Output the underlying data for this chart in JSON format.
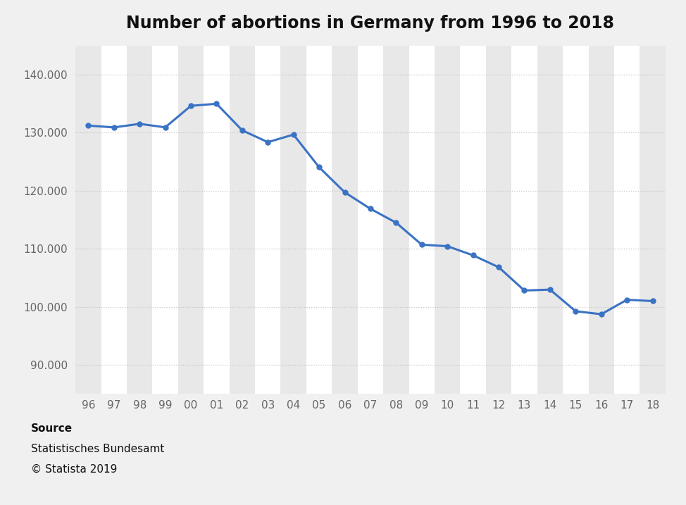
{
  "title": "Number of abortions in Germany from 1996 to 2018",
  "years": [
    "96",
    "97",
    "98",
    "99",
    "00",
    "01",
    "02",
    "03",
    "04",
    "05",
    "06",
    "07",
    "08",
    "09",
    "10",
    "11",
    "12",
    "13",
    "14",
    "15",
    "16",
    "17",
    "18"
  ],
  "values": [
    131200,
    130890,
    131500,
    130900,
    134600,
    134964,
    130387,
    128345,
    129650,
    124023,
    119710,
    116871,
    114484,
    110694,
    110431,
    108867,
    106815,
    102802,
    102962,
    99237,
    98721,
    101209,
    100986
  ],
  "line_color": "#3a72c4",
  "marker_color": "#3a72c4",
  "figure_bg_color": "#f0f0f0",
  "plot_bg_color": "#ffffff",
  "col_band_color": "#e8e8e8",
  "grid_color": "#c8c8c8",
  "grid_style": "dotted",
  "ylim": [
    85000,
    145000
  ],
  "yticks": [
    90000,
    100000,
    110000,
    120000,
    130000,
    140000
  ],
  "ytick_labels": [
    "90.000",
    "100.000",
    "110.000",
    "120.000",
    "130.000",
    "140.000"
  ],
  "source_label": "Source",
  "source_name": "Statistisches Bundesamt",
  "copyright": "© Statista 2019",
  "title_fontsize": 17,
  "tick_fontsize": 11,
  "source_fontsize": 11,
  "line_width": 2.2,
  "marker_size": 5
}
